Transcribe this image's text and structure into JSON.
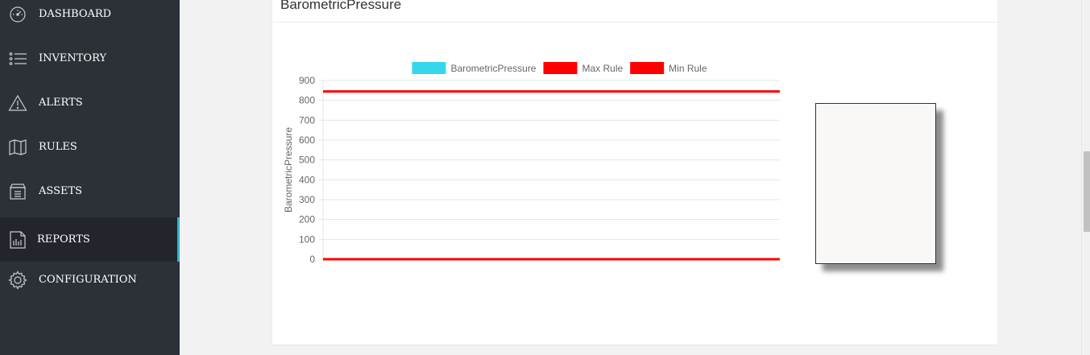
{
  "sidebar": {
    "items": [
      {
        "label": "DASHBOARD",
        "icon": "speedometer-icon"
      },
      {
        "label": "INVENTORY",
        "icon": "list-icon"
      },
      {
        "label": "ALERTS",
        "icon": "warning-icon"
      },
      {
        "label": "RULES",
        "icon": "book-icon"
      },
      {
        "label": "ASSETS",
        "icon": "archive-icon"
      },
      {
        "label": "REPORTS",
        "icon": "report-icon",
        "active": true
      },
      {
        "label": "CONFIGURATION",
        "icon": "gear-icon"
      }
    ]
  },
  "card": {
    "title": "BarometricPressure"
  },
  "colors": {
    "sidebar_bg": "#2c3138",
    "active_accent": "#2fb3d0",
    "series_color": "#36d7ec",
    "rule_color": "#ff0000"
  },
  "chart_data": {
    "type": "line",
    "title": "",
    "ylabel": "BarometricPressure",
    "xlabel": "",
    "ylim": [
      0,
      900
    ],
    "yticks": [
      900,
      800,
      700,
      600,
      500,
      400,
      300,
      200,
      100,
      0
    ],
    "grid": true,
    "legend_position": "top",
    "series": [
      {
        "name": "BarometricPressure",
        "color": "#36d7ec",
        "values": []
      },
      {
        "name": "Max Rule",
        "color": "#ff0000",
        "values": [
          845,
          845
        ]
      },
      {
        "name": "Min Rule",
        "color": "#ff0000",
        "values": [
          0,
          0
        ]
      }
    ]
  }
}
